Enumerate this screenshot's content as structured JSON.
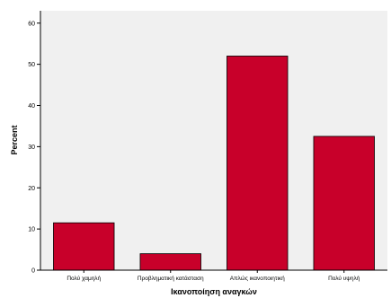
{
  "chart_data": {
    "type": "bar",
    "title": "",
    "xlabel": "Ικανοποίηση αναγκών",
    "ylabel": "Percent",
    "categories": [
      "Πολύ χαμηλή",
      "Προβληματική κατάσταση",
      "Απλώς ικανοποιητική",
      "Πολύ υψηλή"
    ],
    "values": [
      11.5,
      4.0,
      52.0,
      32.5
    ],
    "ylim": [
      0,
      63
    ],
    "yticks": [
      "0",
      "10",
      "20",
      "30",
      "40",
      "50",
      "60"
    ],
    "grid": false,
    "legend": "none",
    "colors": {
      "bar_fill": "#c8002a",
      "bar_stroke": "#000000",
      "plot_background": "#f0f0f0",
      "axis": "#000000"
    }
  }
}
